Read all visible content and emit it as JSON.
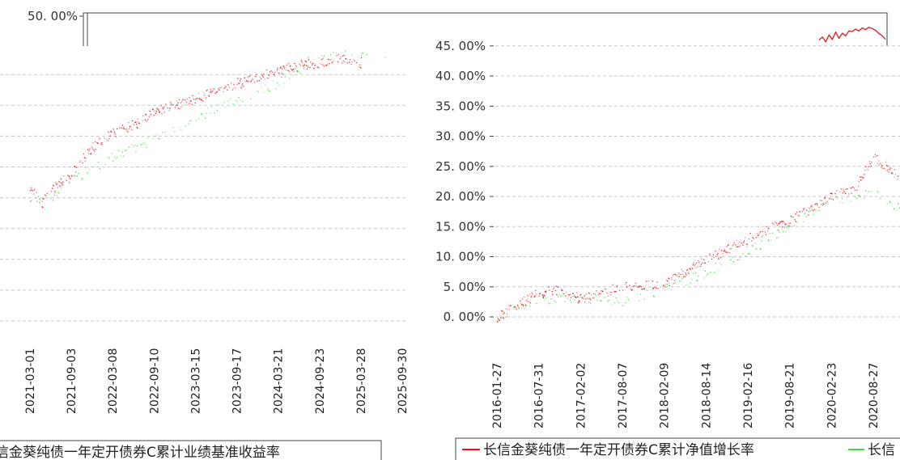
{
  "colors": {
    "nav": "#e8141c",
    "benchmark": "#38e038",
    "grid": "#c8c8c8",
    "axis": "#444444"
  },
  "chart_data": [
    {
      "type": "line",
      "panel": "left",
      "title": "",
      "xlabel": "",
      "ylabel": "",
      "x_ticks": [
        "2021-03-01",
        "2021-09-03",
        "2022-03-08",
        "2022-09-10",
        "2023-03-15",
        "2023-09-17",
        "2024-03-21",
        "2024-09-23",
        "2025-03-28",
        "2025-09-30"
      ],
      "y_ticks": [
        "50. 00%"
      ],
      "ylim": [
        0,
        50
      ],
      "grid": true,
      "legend": {
        "position": "bottom",
        "entries": [
          "信金葵纯债一年定开债券C累计业绩基准收益率"
        ]
      },
      "series": [
        {
          "name": "长信金葵纯债一年定开债券C累计净值增长率",
          "color": "#e8141c",
          "points": [
            [
              "2021-03-01",
              22.0
            ],
            [
              "2021-04-20",
              19.0
            ],
            [
              "2021-06-01",
              21.0
            ],
            [
              "2021-09-03",
              24.0
            ],
            [
              "2021-12-01",
              28.0
            ],
            [
              "2022-03-08",
              30.5
            ],
            [
              "2022-06-15",
              32.0
            ],
            [
              "2022-09-10",
              34.0
            ],
            [
              "2022-12-10",
              35.0
            ],
            [
              "2023-03-15",
              36.0
            ],
            [
              "2023-06-15",
              37.5
            ],
            [
              "2023-09-17",
              38.5
            ],
            [
              "2023-12-15",
              39.5
            ],
            [
              "2024-03-21",
              40.5
            ],
            [
              "2024-06-20",
              41.5
            ],
            [
              "2024-09-23",
              42.0
            ],
            [
              "2024-12-15",
              42.5
            ],
            [
              "2025-03-28",
              42.0
            ]
          ]
        },
        {
          "name": "长信金葵纯债一年定开债券C累计业绩基准收益率",
          "color": "#38e038",
          "points": [
            [
              "2021-03-01",
              19.5
            ],
            [
              "2021-06-01",
              20.0
            ],
            [
              "2021-09-03",
              23.0
            ],
            [
              "2022-03-08",
              26.5
            ],
            [
              "2022-09-10",
              29.5
            ],
            [
              "2023-03-15",
              33.0
            ],
            [
              "2023-09-17",
              36.0
            ],
            [
              "2024-03-21",
              38.5
            ],
            [
              "2024-09-23",
              43.5
            ],
            [
              "2025-03-28",
              44.0
            ],
            [
              "2025-07-15",
              43.5
            ]
          ]
        }
      ]
    },
    {
      "type": "line",
      "panel": "right",
      "title": "",
      "xlabel": "",
      "ylabel": "",
      "x_ticks": [
        "2016-01-27",
        "2016-07-31",
        "2017-02-02",
        "2017-08-07",
        "2018-02-09",
        "2018-08-14",
        "2019-02-16",
        "2019-08-21",
        "2020-02-23",
        "2020-08-27"
      ],
      "y_ticks": [
        "0. 00%",
        "5. 00%",
        "10. 00%",
        "15. 00%",
        "20. 00%",
        "25. 00%",
        "30. 00%",
        "35. 00%",
        "40. 00%",
        "45. 00%"
      ],
      "ylim": [
        0,
        45
      ],
      "grid": true,
      "legend": {
        "position": "bottom",
        "entries": [
          "长信金葵纯债一年定开债券C累计净值增长率",
          "长信"
        ]
      },
      "series": [
        {
          "name": "长信金葵纯债一年定开债券C累计净值增长率",
          "color": "#e8141c",
          "points": [
            [
              "2016-01-27",
              0.0
            ],
            [
              "2016-07-31",
              4.0
            ],
            [
              "2016-10-15",
              4.5
            ],
            [
              "2017-02-02",
              3.0
            ],
            [
              "2017-08-07",
              5.0
            ],
            [
              "2018-02-09",
              5.5
            ],
            [
              "2018-08-14",
              9.5
            ],
            [
              "2019-02-16",
              13.0
            ],
            [
              "2019-08-21",
              16.0
            ],
            [
              "2020-02-23",
              20.0
            ],
            [
              "2020-06-01",
              21.0
            ],
            [
              "2020-08-27",
              26.5
            ],
            [
              "2020-10-20",
              25.0
            ],
            [
              "2020-12-20",
              23.0
            ]
          ]
        },
        {
          "name": "长信金葵纯债一年定开债券C累计业绩基准收益率",
          "color": "#38e038",
          "points": [
            [
              "2016-01-27",
              0.0
            ],
            [
              "2016-07-31",
              3.0
            ],
            [
              "2017-02-02",
              3.0
            ],
            [
              "2017-08-07",
              2.5
            ],
            [
              "2018-02-09",
              4.5
            ],
            [
              "2018-08-14",
              7.5
            ],
            [
              "2019-02-16",
              11.0
            ],
            [
              "2019-08-21",
              15.0
            ],
            [
              "2020-02-23",
              19.5
            ],
            [
              "2020-08-27",
              20.5
            ],
            [
              "2020-12-20",
              18.0
            ]
          ]
        }
      ]
    },
    {
      "type": "line",
      "panel": "inset",
      "title": "",
      "ylabel": "",
      "series": [
        {
          "name": "长信金葵纯债一年定开债券C累计净值增长率",
          "color": "#e8141c",
          "values": [
            45.5,
            46.0,
            45.2,
            46.3,
            45.6,
            46.8,
            45.8,
            46.6,
            46.2,
            47.0,
            46.9,
            47.3,
            47.0,
            47.5,
            47.2,
            47.6,
            47.4,
            47.1,
            46.6,
            46.2,
            45.6
          ]
        }
      ]
    }
  ]
}
